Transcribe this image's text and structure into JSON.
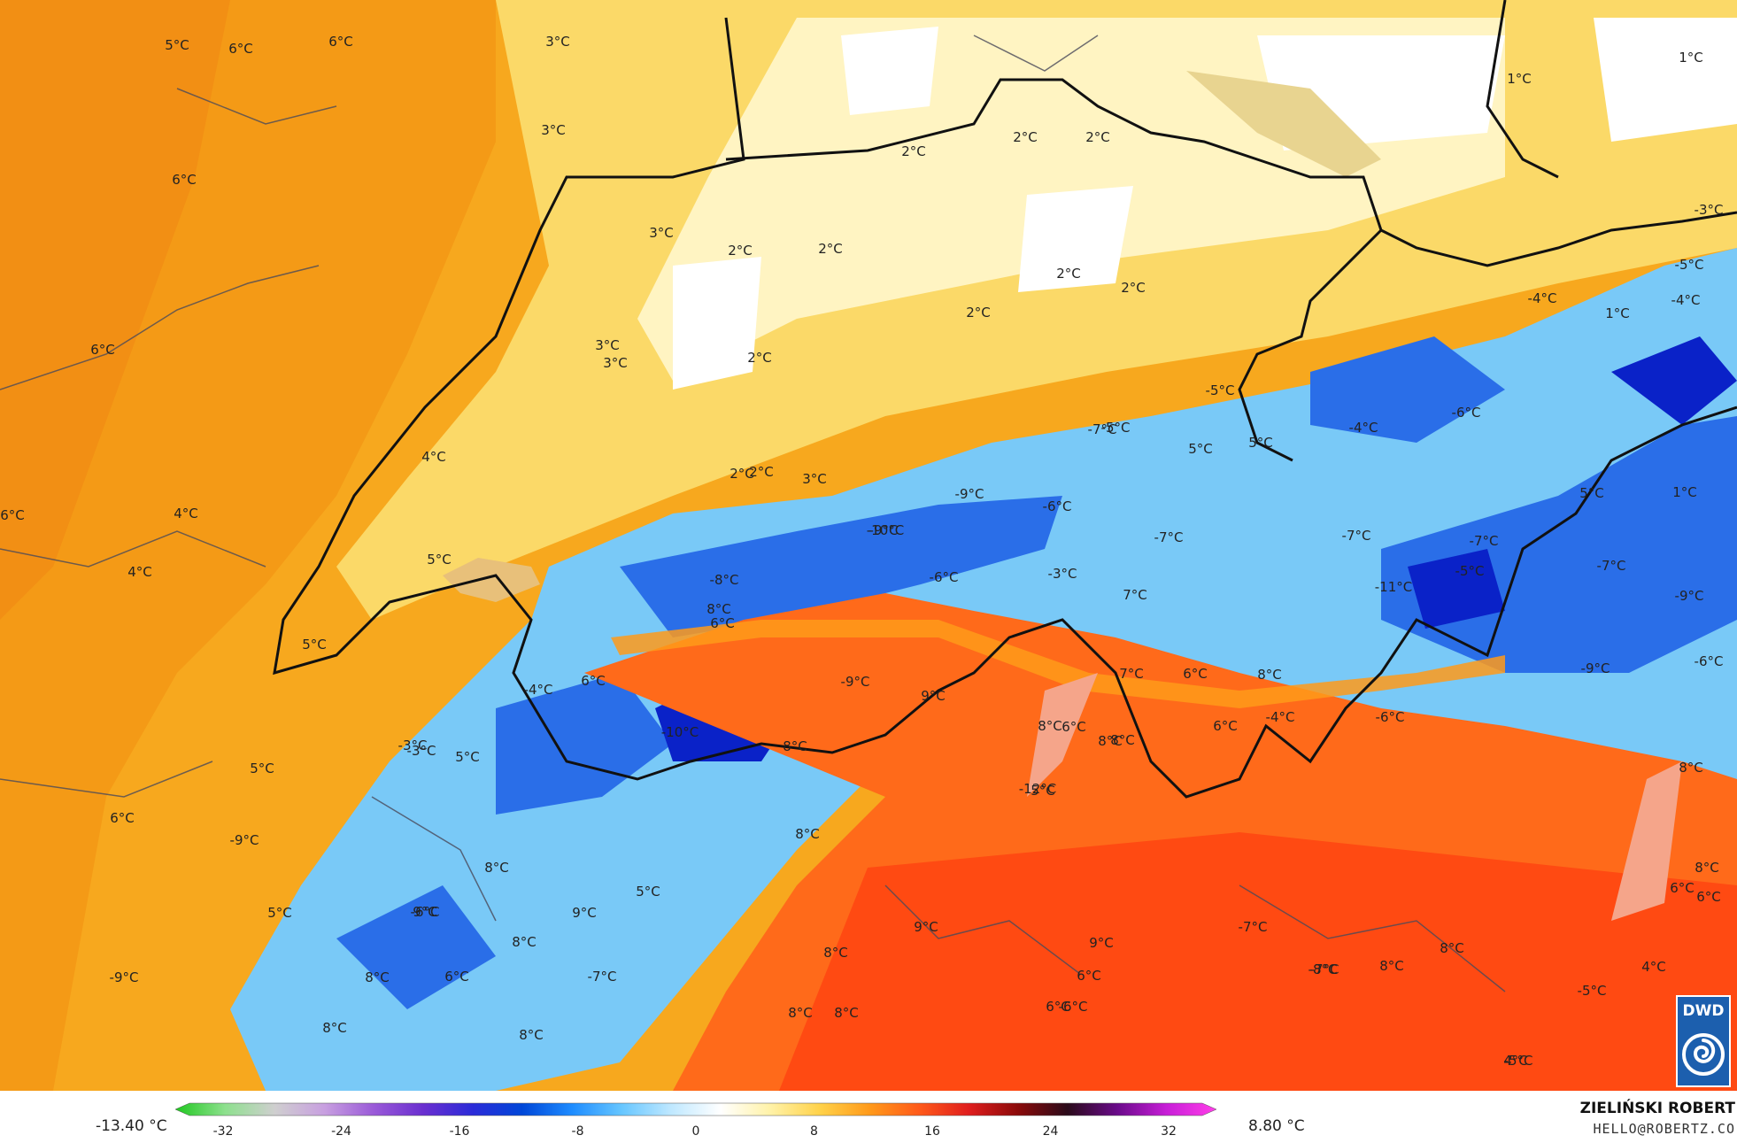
{
  "legend": {
    "min_label": "-13.40 °C",
    "max_label": "8.80 °C",
    "ticks": [
      "-32",
      "-24",
      "-16",
      "-8",
      "0",
      "8",
      "16",
      "24",
      "32"
    ],
    "stops": [
      "#1fc81f",
      "#8de08d",
      "#cfcfcf",
      "#c8a0e0",
      "#9a5ad8",
      "#6a2fd0",
      "#2b2bd8",
      "#0047d8",
      "#1e8cff",
      "#66c6ff",
      "#bfe8ff",
      "#ffffff",
      "#fff2a8",
      "#ffd24a",
      "#ff9a1a",
      "#ff5a1a",
      "#e01e1e",
      "#8a0a0a",
      "#2a0a1a",
      "#6a0a8a",
      "#c81ed8",
      "#ff3ee8"
    ]
  },
  "credit": {
    "name": "ZIELIŃSKI ROBERT",
    "email": "HELLO@ROBERTZ.CO"
  },
  "logo": {
    "text": "DWD"
  },
  "map_labels": [
    "5°C",
    "6°C",
    "6°C",
    "3°C",
    "3°C",
    "6°C",
    "2°C",
    "2°C",
    "2°C",
    "1°C",
    "1°C",
    "3°C",
    "2°C",
    "3°C",
    "2°C",
    "2°C",
    "2°C",
    "2°C",
    "2°C",
    "6°C",
    "3°C",
    "2°C",
    "-3°C",
    "-5°C",
    "-4°C",
    "1°C",
    "-5°C",
    "-6°C",
    "-5°C",
    "-7°C",
    "-4°C",
    "5°C",
    "5°C",
    "-9°C",
    "-7°C",
    "4°C",
    "2°C",
    "3°C",
    "-9°C",
    "-4°C",
    "6°C",
    "4°C",
    "-10°C",
    "-6°C",
    "-7°C",
    "5°C",
    "-7°C",
    "5°C",
    "4°C",
    "-8°C",
    "-6°C",
    "-3°C",
    "7°C",
    "-11°C",
    "-5°C",
    "-7°C",
    "-9°C",
    "1°C",
    "5°C",
    "8°C",
    "6°C",
    "8°C",
    "7°C",
    "-9°C",
    "-6°C",
    "6°C",
    "-4°C",
    "6°C",
    "9°C",
    "-9°C",
    "8°C",
    "6°C",
    "8°C",
    "-3°C",
    "-6°C",
    "-4°C",
    "-10°C",
    "8°C",
    "6°C",
    "8°C",
    "-3°C",
    "5°C",
    "5°C",
    "-12°C",
    "8°C",
    "8°C",
    "5°C",
    "-9°C",
    "8°C",
    "5°C",
    "6°C",
    "8°C",
    "5°C",
    "6°C",
    "6°C",
    "-9°C",
    "4°C",
    "-6°C",
    "9°C",
    "9°C",
    "9°C",
    "9°C",
    "-7°C",
    "8°C",
    "8°C",
    "8°C",
    "6°C",
    "-8°C",
    "-7°C",
    "8°C",
    "6°C",
    "-7°C",
    "8°C",
    "8°C",
    "8°C",
    "6°C",
    "-6°C",
    "-5°C",
    "8°C",
    "8°C",
    "4°C",
    "-5°C"
  ]
}
